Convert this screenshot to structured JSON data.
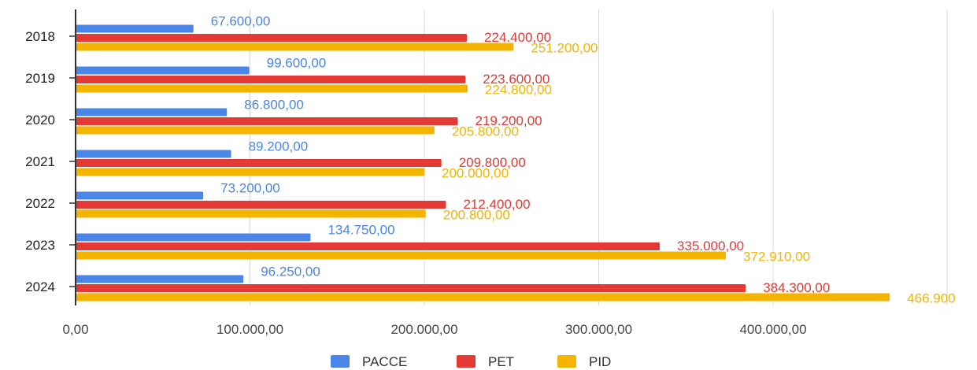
{
  "chart_data": {
    "type": "bar",
    "orientation": "horizontal",
    "categories": [
      "2018",
      "2019",
      "2020",
      "2021",
      "2022",
      "2023",
      "2024"
    ],
    "series": [
      {
        "name": "PACCE",
        "color": "#4a86e8",
        "values": [
          67600,
          99600,
          86800,
          89200,
          73200,
          134750,
          96250
        ],
        "labels": [
          "67.600,00",
          "99.600,00",
          "86.800,00",
          "89.200,00",
          "73.200,00",
          "134.750,00",
          "96.250,00"
        ]
      },
      {
        "name": "PET",
        "color": "#e53935",
        "values": [
          224400,
          223600,
          219200,
          209800,
          212400,
          335000,
          384300
        ],
        "labels": [
          "224.400,00",
          "223.600,00",
          "219.200,00",
          "209.800,00",
          "212.400,00",
          "335.000,00",
          "384.300,00"
        ]
      },
      {
        "name": "PID",
        "color": "#f4b400",
        "values": [
          251200,
          224800,
          205800,
          200000,
          200800,
          372910,
          466900
        ],
        "labels": [
          "251.200,00",
          "224.800,00",
          "205.800,00",
          "200.000,00",
          "200.800,00",
          "372.910,00",
          "466.900"
        ]
      }
    ],
    "x_ticks": [
      0,
      100000,
      200000,
      300000,
      400000
    ],
    "x_tick_labels": [
      "0,00",
      "100.000,00",
      "200.000,00",
      "300.000,00",
      "400.000,00"
    ],
    "xlim": [
      0,
      500000
    ],
    "grid": "vertical",
    "legend_position": "bottom"
  }
}
